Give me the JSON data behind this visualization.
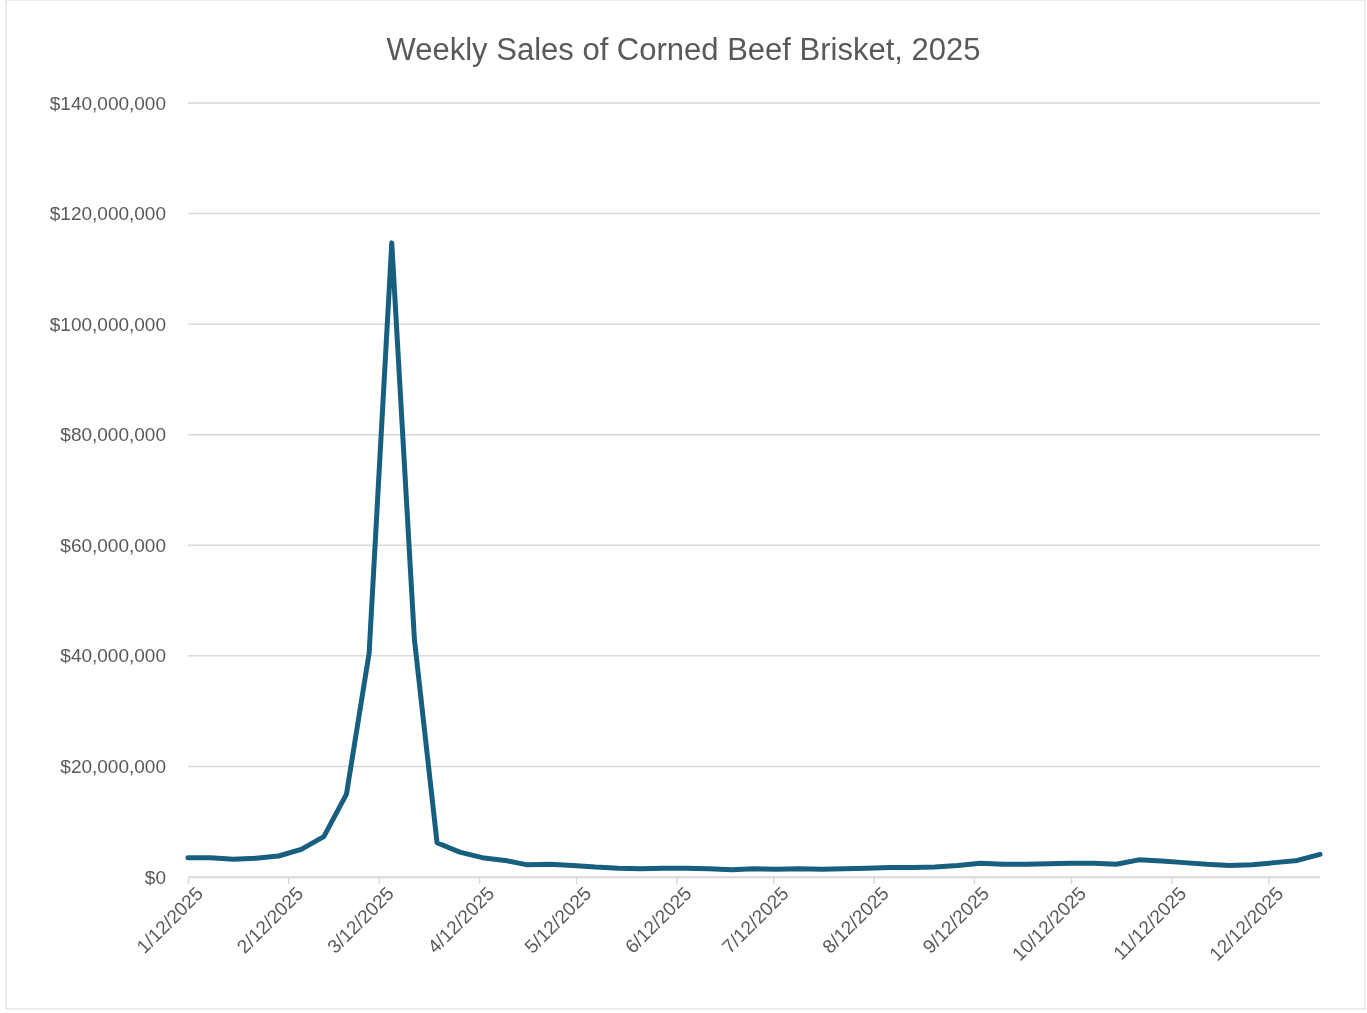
{
  "chart_data": {
    "type": "line",
    "title": "Weekly Sales of Corned Beef Brisket, 2025",
    "x": [
      "2025-01-12",
      "2025-01-19",
      "2025-01-26",
      "2025-02-02",
      "2025-02-09",
      "2025-02-16",
      "2025-02-23",
      "2025-03-02",
      "2025-03-09",
      "2025-03-16",
      "2025-03-23",
      "2025-03-30",
      "2025-04-06",
      "2025-04-13",
      "2025-04-20",
      "2025-04-27",
      "2025-05-04",
      "2025-05-11",
      "2025-05-18",
      "2025-05-25",
      "2025-06-01",
      "2025-06-08",
      "2025-06-15",
      "2025-06-22",
      "2025-06-29",
      "2025-07-06",
      "2025-07-13",
      "2025-07-20",
      "2025-07-27",
      "2025-08-03",
      "2025-08-10",
      "2025-08-17",
      "2025-08-24",
      "2025-08-31",
      "2025-09-07",
      "2025-09-14",
      "2025-09-21",
      "2025-09-28",
      "2025-10-05",
      "2025-10-12",
      "2025-10-19",
      "2025-10-26",
      "2025-11-02",
      "2025-11-09",
      "2025-11-16",
      "2025-11-23",
      "2025-11-30",
      "2025-12-07",
      "2025-12-14",
      "2025-12-21",
      "2025-12-28"
    ],
    "series": [
      {
        "color": "#175e7f",
        "values": [
          3500000,
          3500000,
          3200000,
          3400000,
          3800000,
          5000000,
          7300000,
          15000000,
          40500000,
          114700000,
          43000000,
          6200000,
          4500000,
          3500000,
          3000000,
          2200000,
          2300000,
          2100000,
          1800000,
          1600000,
          1500000,
          1600000,
          1600000,
          1500000,
          1300000,
          1500000,
          1400000,
          1500000,
          1400000,
          1500000,
          1600000,
          1700000,
          1700000,
          1800000,
          2100000,
          2500000,
          2300000,
          2300000,
          2400000,
          2500000,
          2500000,
          2300000,
          3100000,
          2900000,
          2600000,
          2300000,
          2100000,
          2200000,
          2600000,
          3000000,
          4100000
        ]
      }
    ],
    "xlim": [
      "2025-01-12",
      "2025-12-28"
    ],
    "xticks": [
      {
        "value": "2025-01-12",
        "label": "1/12/2025"
      },
      {
        "value": "2025-02-12",
        "label": "2/12/2025"
      },
      {
        "value": "2025-03-12",
        "label": "3/12/2025"
      },
      {
        "value": "2025-04-12",
        "label": "4/12/2025"
      },
      {
        "value": "2025-05-12",
        "label": "5/12/2025"
      },
      {
        "value": "2025-06-12",
        "label": "6/12/2025"
      },
      {
        "value": "2025-07-12",
        "label": "7/12/2025"
      },
      {
        "value": "2025-08-12",
        "label": "8/12/2025"
      },
      {
        "value": "2025-09-12",
        "label": "9/12/2025"
      },
      {
        "value": "2025-10-12",
        "label": "10/12/2025"
      },
      {
        "value": "2025-11-12",
        "label": "11/12/2025"
      },
      {
        "value": "2025-12-12",
        "label": "12/12/2025"
      }
    ],
    "ylim": [
      0,
      140000000
    ],
    "yticks": [
      {
        "value": 0,
        "label": "$0"
      },
      {
        "value": 20000000,
        "label": "$20,000,000"
      },
      {
        "value": 40000000,
        "label": "$40,000,000"
      },
      {
        "value": 60000000,
        "label": "$60,000,000"
      },
      {
        "value": 80000000,
        "label": "$80,000,000"
      },
      {
        "value": 100000000,
        "label": "$100,000,000"
      },
      {
        "value": 120000000,
        "label": "$120,000,000"
      },
      {
        "value": 140000000,
        "label": "$140,000,000"
      }
    ],
    "grid": "y",
    "marker": "none",
    "line_style": "solid"
  }
}
